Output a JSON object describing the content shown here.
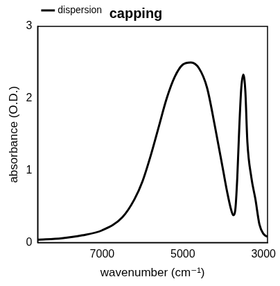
{
  "chart_data": {
    "type": "line",
    "title": "capping",
    "x_label": "wavenumber (cm⁻¹)",
    "y_label": "absorbance (O.D.)",
    "x": [
      8600,
      8000,
      7500,
      7000,
      6500,
      6200,
      6000,
      5800,
      5600,
      5400,
      5200,
      5000,
      4800,
      4600,
      4400,
      4200,
      4000,
      3900,
      3800,
      3750,
      3700,
      3650,
      3600,
      3550,
      3500,
      3450,
      3400,
      3300,
      3200,
      3100,
      3000,
      2900
    ],
    "series": [
      {
        "name": "dispersion",
        "color": "#000000",
        "values": [
          0.04,
          0.06,
          0.1,
          0.17,
          0.35,
          0.6,
          0.85,
          1.2,
          1.6,
          2.0,
          2.3,
          2.47,
          2.5,
          2.42,
          2.15,
          1.6,
          1.0,
          0.7,
          0.45,
          0.38,
          0.45,
          0.9,
          1.6,
          2.15,
          2.33,
          2.1,
          1.4,
          0.9,
          0.6,
          0.25,
          0.12,
          0.08
        ]
      }
    ],
    "xlim": [
      8600,
      2900
    ],
    "xticks": [
      7000,
      5000,
      3000
    ],
    "ylim": [
      0,
      3
    ],
    "yticks": [
      0,
      1,
      2,
      3
    ],
    "grid": false,
    "legend": "top-left"
  }
}
